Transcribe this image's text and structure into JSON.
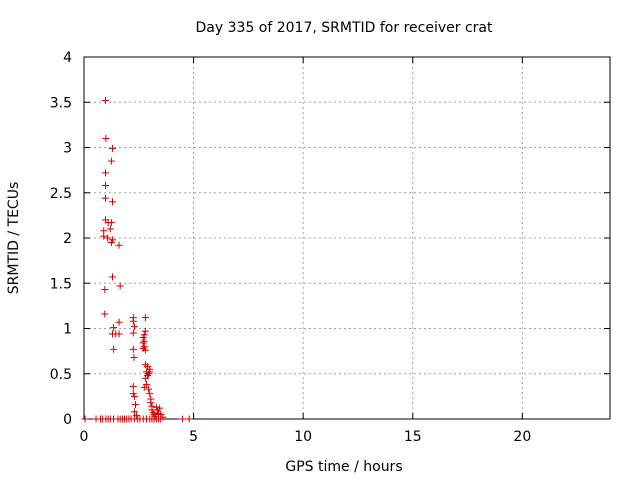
{
  "chart_data": {
    "type": "scatter",
    "title": "Day 335 of 2017, SRMTID for receiver crat",
    "xlabel": "GPS time / hours",
    "ylabel": "SRMTID / TECUs",
    "xlim": [
      0,
      24
    ],
    "ylim": [
      0,
      4
    ],
    "xticks": [
      0,
      5,
      10,
      15,
      20
    ],
    "xtick_labels": [
      "0",
      "5",
      "10",
      "15",
      "20"
    ],
    "yticks": [
      0,
      0.5,
      1,
      1.5,
      2,
      2.5,
      3,
      3.5,
      4
    ],
    "ytick_labels": [
      "0",
      "0.5",
      "1",
      "1.5",
      "2",
      "2.5",
      "3",
      "3.5",
      "4"
    ],
    "grid": true,
    "marker": "+",
    "color": "#d40000",
    "series": [
      {
        "name": "SRMTID",
        "points": [
          [
            0.05,
            0
          ],
          [
            0.55,
            0
          ],
          [
            0.75,
            0
          ],
          [
            0.85,
            0
          ],
          [
            1.0,
            0
          ],
          [
            1.1,
            0
          ],
          [
            1.2,
            0
          ],
          [
            1.35,
            0
          ],
          [
            1.55,
            0
          ],
          [
            1.65,
            0
          ],
          [
            1.75,
            0
          ],
          [
            1.85,
            0
          ],
          [
            1.95,
            0
          ],
          [
            2.05,
            0
          ],
          [
            2.15,
            0
          ],
          [
            2.3,
            0
          ],
          [
            2.45,
            0
          ],
          [
            2.55,
            0
          ],
          [
            2.7,
            0
          ],
          [
            2.85,
            0
          ],
          [
            3.0,
            0
          ],
          [
            3.1,
            0
          ],
          [
            3.2,
            0
          ],
          [
            3.3,
            0
          ],
          [
            3.4,
            0
          ],
          [
            3.5,
            0
          ],
          [
            4.5,
            0
          ],
          [
            4.8,
            0
          ],
          [
            0.98,
            3.52
          ],
          [
            1.0,
            3.1
          ],
          [
            1.3,
            2.99
          ],
          [
            1.25,
            2.85
          ],
          [
            0.98,
            2.72
          ],
          [
            0.98,
            2.58
          ],
          [
            0.98,
            2.44
          ],
          [
            1.3,
            2.4
          ],
          [
            0.98,
            2.2
          ],
          [
            1.1,
            2.17
          ],
          [
            1.25,
            2.17
          ],
          [
            1.2,
            2.1
          ],
          [
            0.9,
            2.08
          ],
          [
            0.9,
            2.02
          ],
          [
            1.08,
            2.0
          ],
          [
            1.3,
            1.98
          ],
          [
            1.25,
            1.95
          ],
          [
            1.6,
            1.92
          ],
          [
            1.3,
            1.57
          ],
          [
            1.65,
            1.47
          ],
          [
            0.95,
            1.43
          ],
          [
            0.95,
            1.16
          ],
          [
            1.6,
            1.07
          ],
          [
            1.35,
            1.01
          ],
          [
            1.3,
            0.94
          ],
          [
            1.45,
            0.94
          ],
          [
            1.6,
            0.94
          ],
          [
            1.35,
            0.77
          ],
          [
            2.25,
            1.12
          ],
          [
            2.25,
            1.08
          ],
          [
            2.3,
            1.02
          ],
          [
            2.25,
            0.95
          ],
          [
            2.25,
            0.77
          ],
          [
            2.28,
            0.68
          ],
          [
            2.25,
            0.36
          ],
          [
            2.25,
            0.28
          ],
          [
            2.3,
            0.25
          ],
          [
            2.35,
            0.16
          ],
          [
            2.3,
            0.08
          ],
          [
            2.4,
            0.04
          ],
          [
            2.8,
            1.12
          ],
          [
            2.8,
            0.97
          ],
          [
            2.75,
            0.93
          ],
          [
            2.7,
            0.9
          ],
          [
            2.75,
            0.86
          ],
          [
            2.7,
            0.84
          ],
          [
            2.75,
            0.8
          ],
          [
            2.7,
            0.78
          ],
          [
            2.8,
            0.76
          ],
          [
            2.8,
            0.6
          ],
          [
            2.9,
            0.58
          ],
          [
            3.0,
            0.55
          ],
          [
            3.0,
            0.52
          ],
          [
            2.85,
            0.52
          ],
          [
            2.95,
            0.5
          ],
          [
            2.9,
            0.48
          ],
          [
            2.8,
            0.45
          ],
          [
            2.85,
            0.38
          ],
          [
            2.75,
            0.35
          ],
          [
            2.95,
            0.33
          ],
          [
            3.0,
            0.28
          ],
          [
            3.05,
            0.22
          ],
          [
            3.05,
            0.18
          ],
          [
            3.1,
            0.14
          ],
          [
            3.1,
            0.1
          ],
          [
            3.15,
            0.07
          ],
          [
            3.2,
            0.05
          ],
          [
            3.25,
            0.03
          ],
          [
            3.3,
            0.13
          ],
          [
            3.35,
            0.1
          ],
          [
            3.4,
            0.06
          ],
          [
            3.45,
            0.12
          ],
          [
            3.5,
            0.05
          ],
          [
            3.6,
            0.02
          ]
        ]
      }
    ]
  }
}
